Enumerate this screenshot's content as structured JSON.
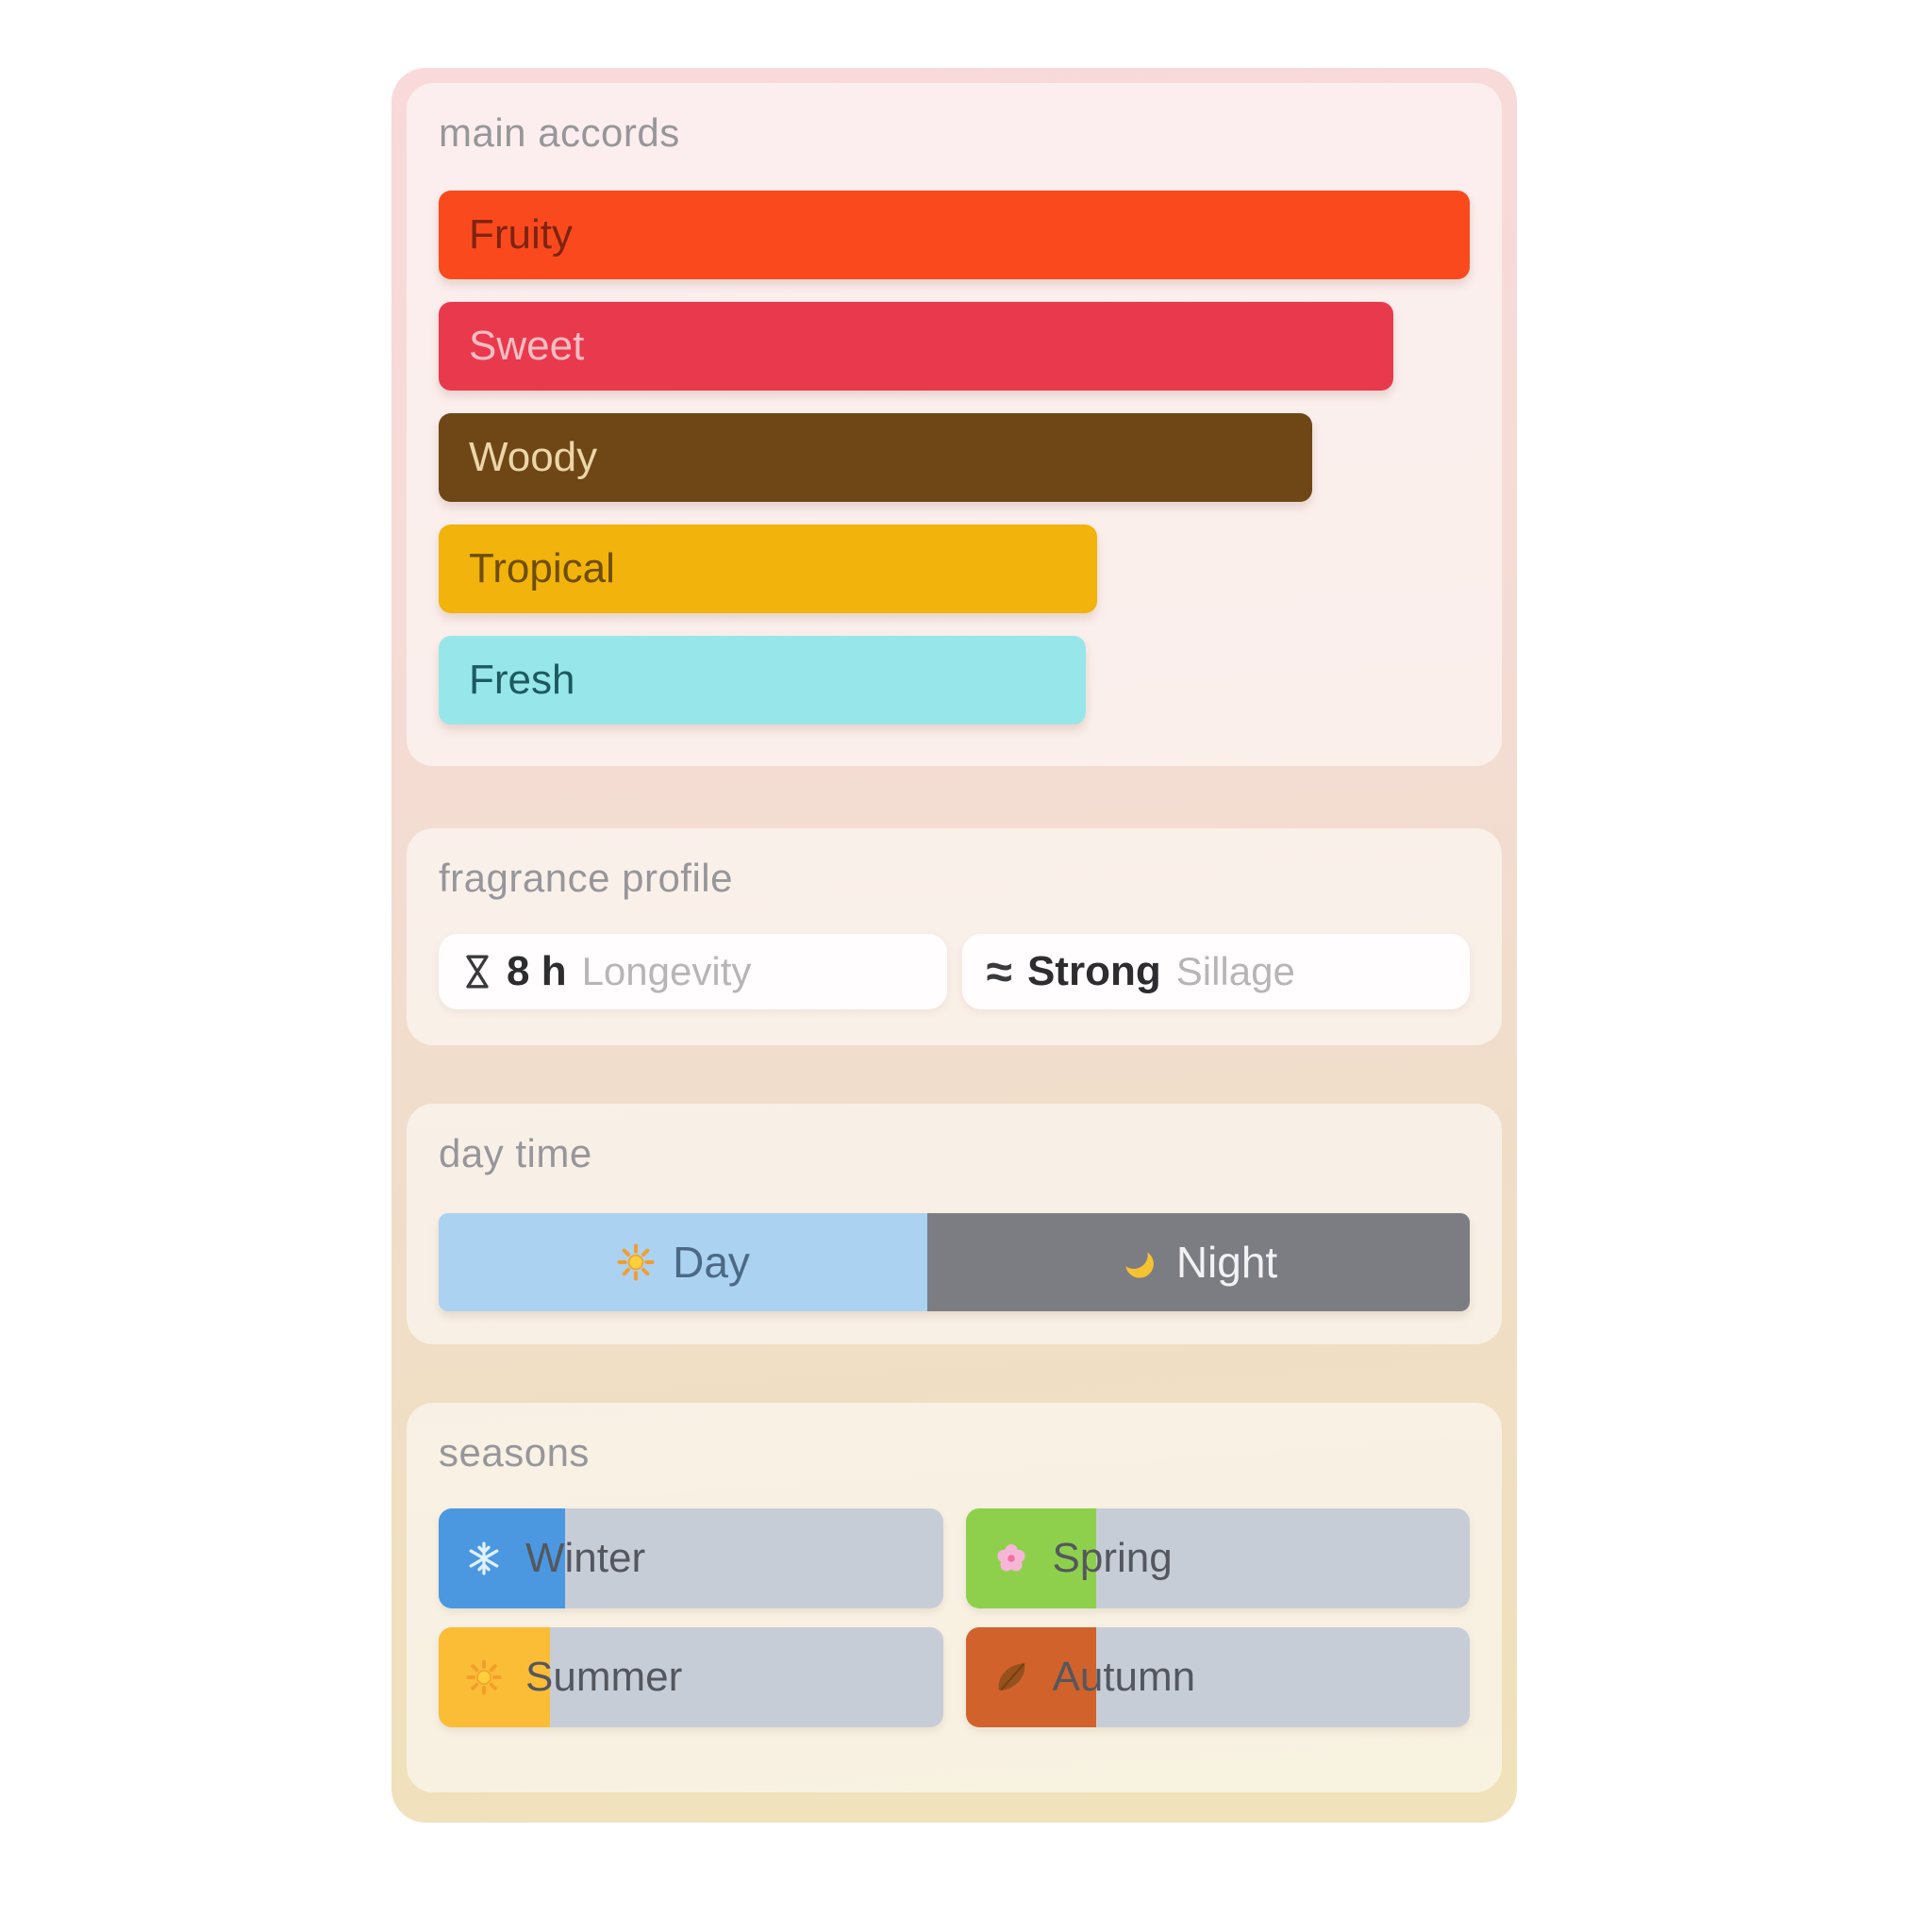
{
  "sections": {
    "accords": {
      "title": "main accords",
      "bars": [
        {
          "label": "Fruity",
          "percent": 100,
          "bg": "#fa4a1d",
          "text_color": "#7e2310"
        },
        {
          "label": "Sweet",
          "percent": 92.6,
          "bg": "#e93a4d",
          "text_color": "#f4bdc3"
        },
        {
          "label": "Woody",
          "percent": 84.7,
          "bg": "#6f4716",
          "text_color": "#ecd6a8"
        },
        {
          "label": "Tropical",
          "percent": 63.9,
          "bg": "#f1b30c",
          "text_color": "#6f4e03"
        },
        {
          "label": "Fresh",
          "percent": 62.8,
          "bg": "#97e7ea",
          "text_color": "#1c5a61"
        }
      ]
    },
    "profile": {
      "title": "fragrance profile",
      "stats": [
        {
          "icon": "hourglass-icon",
          "value": "8 h",
          "label": "Longevity"
        },
        {
          "icon": "waves-icon",
          "value": "Strong",
          "label": "Sillage"
        }
      ]
    },
    "daytime": {
      "title": "day time",
      "segments": [
        {
          "label": "Day",
          "icon": "sun-icon",
          "percent": 47.4,
          "bg": "#abd2f1",
          "text_color": "#4c6a85"
        },
        {
          "label": "Night",
          "icon": "moon-icon",
          "percent": 52.6,
          "bg": "#7c7c83",
          "text_color": "#f2f2f4"
        }
      ]
    },
    "seasons": {
      "title": "seasons",
      "track_color": "#c7cdd7",
      "label_color": "#54575e",
      "items": [
        {
          "label": "Winter",
          "icon": "snowflake-icon",
          "fill_percent": 25,
          "fill_color": "#4b98e0"
        },
        {
          "label": "Spring",
          "icon": "blossom-icon",
          "fill_percent": 26,
          "fill_color": "#8ed04c"
        },
        {
          "label": "Summer",
          "icon": "sun-icon",
          "fill_percent": 22,
          "fill_color": "#fbbd35"
        },
        {
          "label": "Autumn",
          "icon": "leaf-icon",
          "fill_percent": 26,
          "fill_color": "#d2622b"
        }
      ]
    }
  }
}
